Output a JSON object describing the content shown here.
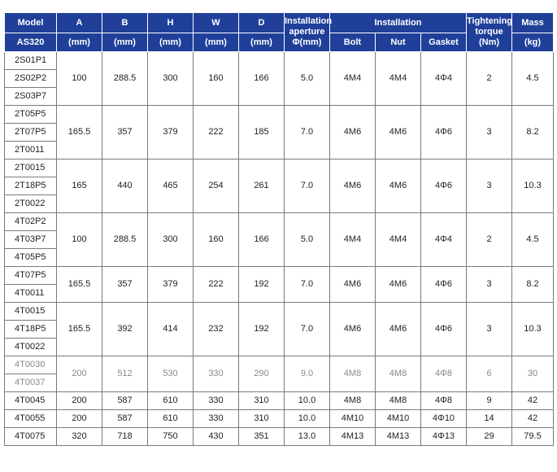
{
  "header": {
    "model_label": "Model",
    "model_sub": "AS320",
    "a_label": "A",
    "b_label": "B",
    "h_label": "H",
    "w_label": "W",
    "d_label": "D",
    "unit_mm": "(mm)",
    "aperture_line1": "Installation",
    "aperture_line2": "aperture",
    "aperture_line3": "Φ(mm)",
    "installation_label": "Installation",
    "bolt_label": "Bolt",
    "nut_label": "Nut",
    "gasket_label": "Gasket",
    "torque_line1": "Tightening",
    "torque_line2": "torque",
    "torque_unit": "(Nm)",
    "mass_label": "Mass",
    "mass_unit": "(kg)"
  },
  "groups": [
    {
      "models": [
        "2S01P1",
        "2S02P2",
        "2S03P7"
      ],
      "a": "100",
      "b": "288.5",
      "h": "300",
      "w": "160",
      "d": "166",
      "aperture": "5.0",
      "bolt": "4M4",
      "nut": "4M4",
      "gasket": "4Φ4",
      "torque": "2",
      "mass": "4.5"
    },
    {
      "models": [
        "2T05P5",
        "2T07P5",
        "2T0011"
      ],
      "a": "165.5",
      "b": "357",
      "h": "379",
      "w": "222",
      "d": "185",
      "aperture": "7.0",
      "bolt": "4M6",
      "nut": "4M6",
      "gasket": "4Φ6",
      "torque": "3",
      "mass": "8.2"
    },
    {
      "models": [
        "2T0015",
        "2T18P5",
        "2T0022"
      ],
      "a": "165",
      "b": "440",
      "h": "465",
      "w": "254",
      "d": "261",
      "aperture": "7.0",
      "bolt": "4M6",
      "nut": "4M6",
      "gasket": "4Φ6",
      "torque": "3",
      "mass": "10.3"
    },
    {
      "models": [
        "4T02P2",
        "4T03P7",
        "4T05P5"
      ],
      "a": "100",
      "b": "288.5",
      "h": "300",
      "w": "160",
      "d": "166",
      "aperture": "5.0",
      "bolt": "4M4",
      "nut": "4M4",
      "gasket": "4Φ4",
      "torque": "2",
      "mass": "4.5"
    },
    {
      "models": [
        "4T07P5",
        "4T0011"
      ],
      "a": "165.5",
      "b": "357",
      "h": "379",
      "w": "222",
      "d": "192",
      "aperture": "7.0",
      "bolt": "4M6",
      "nut": "4M6",
      "gasket": "4Φ6",
      "torque": "3",
      "mass": "8.2"
    },
    {
      "models": [
        "4T0015",
        "4T18P5",
        "4T0022"
      ],
      "a": "165.5",
      "b": "392",
      "h": "414",
      "w": "232",
      "d": "192",
      "aperture": "7.0",
      "bolt": "4M6",
      "nut": "4M6",
      "gasket": "4Φ6",
      "torque": "3",
      "mass": "10.3"
    },
    {
      "models": [
        "4T0030",
        "4T0037"
      ],
      "a": "200",
      "b": "512",
      "h": "530",
      "w": "330",
      "d": "290",
      "aperture": "9.0",
      "bolt": "4M8",
      "nut": "4M8",
      "gasket": "4Φ8",
      "torque": "6",
      "mass": "30",
      "gray": true
    },
    {
      "models": [
        "4T0045"
      ],
      "a": "200",
      "b": "587",
      "h": "610",
      "w": "330",
      "d": "310",
      "aperture": "10.0",
      "bolt": "4M8",
      "nut": "4M8",
      "gasket": "4Φ8",
      "torque": "9",
      "mass": "42"
    },
    {
      "models": [
        "4T0055"
      ],
      "a": "200",
      "b": "587",
      "h": "610",
      "w": "330",
      "d": "310",
      "aperture": "10.0",
      "bolt": "4M10",
      "nut": "4M10",
      "gasket": "4Φ10",
      "torque": "14",
      "mass": "42"
    },
    {
      "models": [
        "4T0075"
      ],
      "a": "320",
      "b": "718",
      "h": "750",
      "w": "430",
      "d": "351",
      "aperture": "13.0",
      "bolt": "4M13",
      "nut": "4M13",
      "gasket": "4Φ13",
      "torque": "29",
      "mass": "79.5"
    }
  ]
}
